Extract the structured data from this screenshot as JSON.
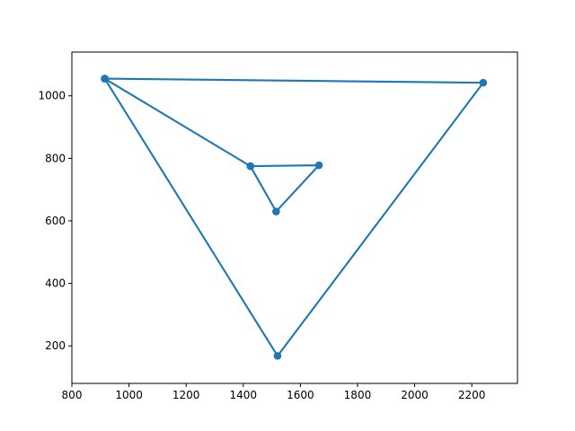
{
  "chart_data": {
    "type": "line",
    "title": "",
    "xlabel": "",
    "ylabel": "",
    "xlim": [
      800,
      2360
    ],
    "ylim": [
      80,
      1140
    ],
    "grid": false,
    "x_ticks": [
      800,
      1000,
      1200,
      1400,
      1600,
      1800,
      2000,
      2200
    ],
    "y_ticks": [
      200,
      400,
      600,
      800,
      1000
    ],
    "color": "#1f77b4",
    "series": [
      {
        "x": [
          915,
          2240,
          1520,
          915,
          1425,
          1665,
          1515,
          1425
        ],
        "y": [
          1055,
          1042,
          168,
          1055,
          775,
          778,
          630,
          775
        ]
      }
    ]
  }
}
